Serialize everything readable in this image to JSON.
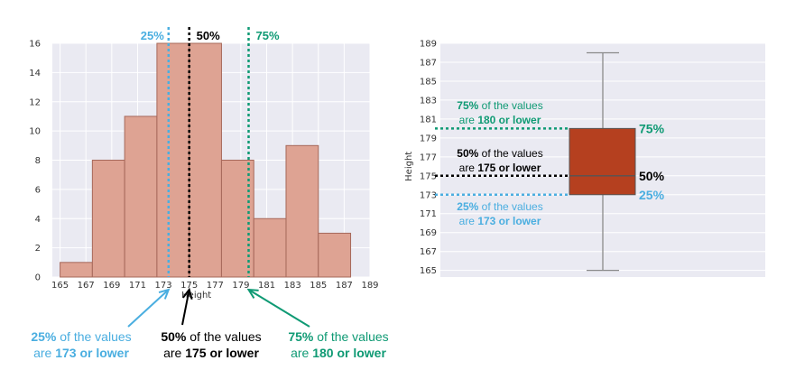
{
  "colors": {
    "bar_fill": "#dea393",
    "bar_edge": "#a6685a",
    "plot_bg": "#eaeaf2",
    "box_fill": "#b5401f",
    "q1": "#4aaee0",
    "median": "#000000",
    "q3": "#0f9a74",
    "whisker": "#8a8a8a"
  },
  "chart_data": [
    {
      "type": "bar",
      "subtype": "histogram",
      "xlabel": "Height",
      "ylabel": "",
      "xlim": [
        164.4,
        189
      ],
      "ylim": [
        0,
        16
      ],
      "xticks": [
        165,
        167,
        169,
        171,
        173,
        175,
        177,
        179,
        181,
        183,
        185,
        187,
        189
      ],
      "yticks": [
        0,
        2,
        4,
        6,
        8,
        10,
        12,
        14,
        16
      ],
      "bins": [
        {
          "start": 165,
          "end": 167.5,
          "count": 1
        },
        {
          "start": 167.5,
          "end": 170,
          "count": 8
        },
        {
          "start": 170,
          "end": 172.5,
          "count": 11
        },
        {
          "start": 172.5,
          "end": 175,
          "count": 16
        },
        {
          "start": 175,
          "end": 177.5,
          "count": 16
        },
        {
          "start": 177.5,
          "end": 180,
          "count": 8
        },
        {
          "start": 180,
          "end": 182.5,
          "count": 4
        },
        {
          "start": 182.5,
          "end": 185,
          "count": 9
        },
        {
          "start": 185,
          "end": 187.5,
          "count": 3
        }
      ],
      "reference_lines": [
        {
          "key": "q1",
          "value": 173.4,
          "label": "25%",
          "color": "#4aaee0"
        },
        {
          "key": "median",
          "value": 175,
          "label": "50%",
          "color": "#000000"
        },
        {
          "key": "q3",
          "value": 179.6,
          "label": "75%",
          "color": "#0f9a74"
        }
      ],
      "grid": true,
      "annotations": [
        {
          "key": "q1",
          "parts": [
            {
              "text": "25%",
              "bold": true
            },
            {
              "text": " of the values",
              "bold": false
            }
          ],
          "line2": [
            {
              "text": "are ",
              "bold": false
            },
            {
              "text": "173 or lower",
              "bold": true
            }
          ]
        },
        {
          "key": "median",
          "parts": [
            {
              "text": "50%",
              "bold": true
            },
            {
              "text": " of the values",
              "bold": false
            }
          ],
          "line2": [
            {
              "text": "are ",
              "bold": false
            },
            {
              "text": "175 or lower",
              "bold": true
            }
          ]
        },
        {
          "key": "q3",
          "parts": [
            {
              "text": "75%",
              "bold": true
            },
            {
              "text": " of the values",
              "bold": false
            }
          ],
          "line2": [
            {
              "text": "are ",
              "bold": false
            },
            {
              "text": "180 or lower",
              "bold": true
            }
          ]
        }
      ]
    },
    {
      "type": "box",
      "ylabel": "Height",
      "ylim": [
        164.3,
        189
      ],
      "yticks": [
        165,
        167,
        169,
        171,
        173,
        175,
        177,
        179,
        181,
        183,
        185,
        187,
        189
      ],
      "whisker_low": 165,
      "q1": 173,
      "median": 175,
      "q3": 180,
      "whisker_high": 188,
      "grid": true,
      "quartile_labels": [
        {
          "key": "q3",
          "value": 180,
          "label": "75%",
          "color": "#0f9a74"
        },
        {
          "key": "median",
          "value": 175,
          "label": "50%",
          "color": "#000000"
        },
        {
          "key": "q1",
          "value": 173,
          "label": "25%",
          "color": "#4aaee0"
        }
      ],
      "annotations": [
        {
          "key": "q3",
          "parts": [
            {
              "text": "75%",
              "bold": true
            },
            {
              "text": " of the values",
              "bold": false
            }
          ],
          "line2": [
            {
              "text": "are ",
              "bold": false
            },
            {
              "text": "180 or lower",
              "bold": true
            }
          ]
        },
        {
          "key": "median",
          "parts": [
            {
              "text": "50%",
              "bold": true
            },
            {
              "text": " of the values",
              "bold": false
            }
          ],
          "line2": [
            {
              "text": "are ",
              "bold": false
            },
            {
              "text": "175 or lower",
              "bold": true
            }
          ]
        },
        {
          "key": "q1",
          "parts": [
            {
              "text": "25%",
              "bold": true
            },
            {
              "text": " of the values",
              "bold": false
            }
          ],
          "line2": [
            {
              "text": "are ",
              "bold": false
            },
            {
              "text": "173 or lower",
              "bold": true
            }
          ]
        }
      ]
    }
  ]
}
